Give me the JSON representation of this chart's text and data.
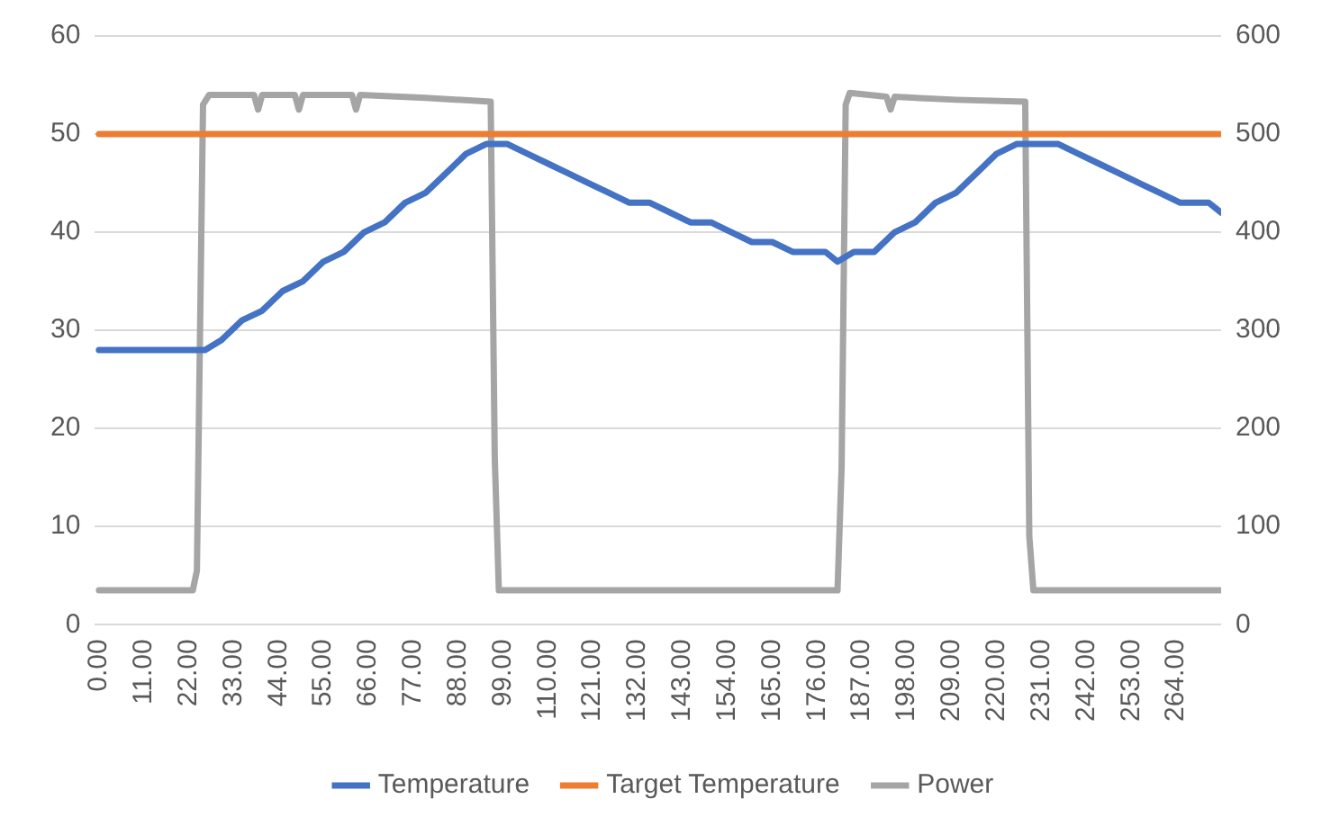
{
  "chart_data": {
    "type": "line",
    "legend": "bottom",
    "grid": "y",
    "marker": "none",
    "line_style": "solid",
    "xlim": [
      -1,
      275
    ],
    "xticks": [
      {
        "value": 0,
        "label": "0.00"
      },
      {
        "value": 11,
        "label": "11.00"
      },
      {
        "value": 22,
        "label": "22.00"
      },
      {
        "value": 33,
        "label": "33.00"
      },
      {
        "value": 44,
        "label": "44.00"
      },
      {
        "value": 55,
        "label": "55.00"
      },
      {
        "value": 66,
        "label": "66.00"
      },
      {
        "value": 77,
        "label": "77.00"
      },
      {
        "value": 88,
        "label": "88.00"
      },
      {
        "value": 99,
        "label": "99.00"
      },
      {
        "value": 110,
        "label": "110.00"
      },
      {
        "value": 121,
        "label": "121.00"
      },
      {
        "value": 132,
        "label": "132.00"
      },
      {
        "value": 143,
        "label": "143.00"
      },
      {
        "value": 154,
        "label": "154.00"
      },
      {
        "value": 165,
        "label": "165.00"
      },
      {
        "value": 176,
        "label": "176.00"
      },
      {
        "value": 187,
        "label": "187.00"
      },
      {
        "value": 198,
        "label": "198.00"
      },
      {
        "value": 209,
        "label": "209.00"
      },
      {
        "value": 220,
        "label": "220.00"
      },
      {
        "value": 231,
        "label": "231.00"
      },
      {
        "value": 242,
        "label": "242.00"
      },
      {
        "value": 253,
        "label": "253.00"
      },
      {
        "value": 264,
        "label": "264.00"
      }
    ],
    "ylim": [
      0,
      60
    ],
    "yticks": [
      0,
      10,
      20,
      30,
      40,
      50,
      60
    ],
    "y2lim": [
      0,
      600
    ],
    "y2ticks": [
      0,
      100,
      200,
      300,
      400,
      500,
      600
    ],
    "series": [
      {
        "name": "Temperature",
        "color": "#4472c4",
        "x": [
          0,
          26,
          30,
          35,
          40,
          45,
          50,
          55,
          60,
          65,
          70,
          75,
          80,
          85,
          90,
          95,
          100,
          105,
          110,
          115,
          120,
          125,
          130,
          135,
          140,
          145,
          150,
          155,
          160,
          165,
          170,
          178,
          181,
          185,
          190,
          195,
          200,
          205,
          210,
          215,
          220,
          225,
          235,
          240,
          245,
          250,
          255,
          260,
          265,
          272,
          275
        ],
        "values": [
          28,
          28,
          29,
          31,
          32,
          34,
          35,
          37,
          38,
          40,
          41,
          43,
          44,
          46,
          48,
          49,
          49,
          48,
          47,
          46,
          45,
          44,
          43,
          43,
          42,
          41,
          41,
          40,
          39,
          39,
          38,
          38,
          37,
          38,
          38,
          40,
          41,
          43,
          44,
          46,
          48,
          49,
          49,
          48,
          47,
          46,
          45,
          44,
          43,
          43,
          42
        ]
      },
      {
        "name": "Target Temperature",
        "color": "#ed7d31",
        "x": [
          0,
          275
        ],
        "values": [
          50,
          50
        ]
      },
      {
        "name": "Power",
        "color": "#a5a5a5",
        "axis": "y2",
        "x": [
          0,
          23,
          24,
          25.5,
          27,
          38,
          39,
          40,
          48,
          49,
          50,
          62,
          63,
          64,
          80,
          96,
          97,
          98,
          181,
          182,
          183,
          184,
          193,
          194,
          195,
          210,
          227,
          228,
          229,
          275
        ],
        "values": [
          35,
          35,
          55,
          530,
          540,
          540,
          525,
          540,
          540,
          525,
          540,
          540,
          525,
          540,
          537,
          533,
          170,
          35,
          35,
          160,
          530,
          542,
          538,
          525,
          538,
          535,
          533,
          90,
          35,
          35
        ]
      }
    ]
  }
}
